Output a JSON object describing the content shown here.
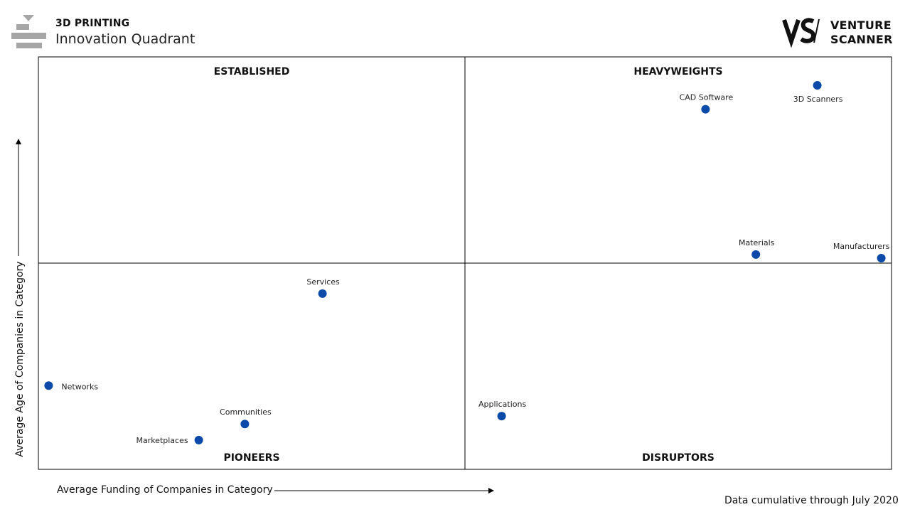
{
  "header": {
    "title_main": "3D PRINTING",
    "title_sub": "Innovation Quadrant",
    "logo_icon": "3d-printer-icon"
  },
  "brand": {
    "name_line1": "VENTURE",
    "name_line2": "SCANNER",
    "mark_icon": "venture-scanner-logo-icon"
  },
  "footnote": "Data cumulative through July 2020",
  "chart_data": {
    "type": "scatter",
    "title": "Innovation Quadrant",
    "xlabel": "Average Funding of Companies in Category",
    "ylabel": "Average Age of Companies in Category",
    "xlim": [
      0,
      100
    ],
    "ylim": [
      0,
      100
    ],
    "quadrants": [
      {
        "name": "ESTABLISHED",
        "position": "top-left"
      },
      {
        "name": "HEAVYWEIGHTS",
        "position": "top-right"
      },
      {
        "name": "PIONEERS",
        "position": "bottom-left"
      },
      {
        "name": "DISRUPTORS",
        "position": "bottom-right"
      }
    ],
    "point_color": "#0b4aa8",
    "points": [
      {
        "label": "CAD Software",
        "x": 78.2,
        "y": 87.3
      },
      {
        "label": "3D Scanners",
        "x": 91.3,
        "y": 93.1
      },
      {
        "label": "Materials",
        "x": 84.1,
        "y": 52.1
      },
      {
        "label": "Manufacturers",
        "x": 98.8,
        "y": 51.2
      },
      {
        "label": "Services",
        "x": 33.3,
        "y": 42.6
      },
      {
        "label": "Networks",
        "x": 1.2,
        "y": 20.3
      },
      {
        "label": "Communities",
        "x": 24.2,
        "y": 11.0
      },
      {
        "label": "Marketplaces",
        "x": 18.8,
        "y": 7.1
      },
      {
        "label": "Applications",
        "x": 54.3,
        "y": 12.9
      }
    ]
  }
}
